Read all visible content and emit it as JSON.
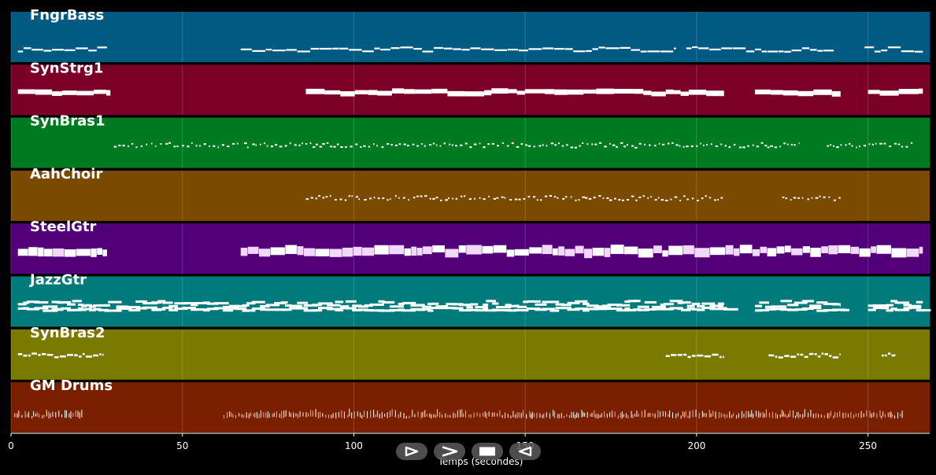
{
  "chart_data": {
    "type": "piano-roll",
    "xlabel": "Temps (secondes)",
    "xlim": [
      0,
      268
    ],
    "xticks": [
      0,
      50,
      100,
      150,
      200,
      250
    ],
    "grid": true,
    "tracks": [
      {
        "name": "FngrBass",
        "color": "#005a82",
        "style": "bass",
        "segments": [
          [
            2,
            28
          ],
          [
            67,
            194
          ],
          [
            197,
            240
          ],
          [
            249,
            266
          ]
        ]
      },
      {
        "name": "SynStrg1",
        "color": "#7a0028",
        "style": "block",
        "segments": [
          [
            2,
            29
          ],
          [
            86,
            208
          ],
          [
            217,
            242
          ],
          [
            250,
            266
          ]
        ]
      },
      {
        "name": "SynBras1",
        "color": "#007a20",
        "style": "dots",
        "segments": [
          [
            30,
            67
          ],
          [
            68,
            230
          ],
          [
            238,
            263
          ]
        ]
      },
      {
        "name": "AahChoir",
        "color": "#7a4a00",
        "style": "dots",
        "segments": [
          [
            86,
            208
          ],
          [
            225,
            242
          ]
        ]
      },
      {
        "name": "SteelGtr",
        "color": "#52007a",
        "style": "chord",
        "segments": [
          [
            2,
            28
          ],
          [
            67,
            266
          ]
        ]
      },
      {
        "name": "JazzGtr",
        "color": "#007a7a",
        "style": "chord2",
        "segments": [
          [
            2,
            208
          ],
          [
            217,
            242
          ],
          [
            250,
            266
          ]
        ]
      },
      {
        "name": "SynBras2",
        "color": "#7a7a00",
        "style": "sparse",
        "segments": [
          [
            2,
            27
          ],
          [
            191,
            208
          ],
          [
            221,
            242
          ],
          [
            254,
            258
          ]
        ]
      },
      {
        "name": "GM Drums",
        "color": "#7a2000",
        "style": "drums",
        "segments": [
          [
            1,
            21
          ],
          [
            62,
            260
          ]
        ]
      }
    ]
  },
  "controls": {
    "play": "play-icon",
    "forward": "forward-icon",
    "stop": "stop-icon",
    "back": "back-icon"
  }
}
